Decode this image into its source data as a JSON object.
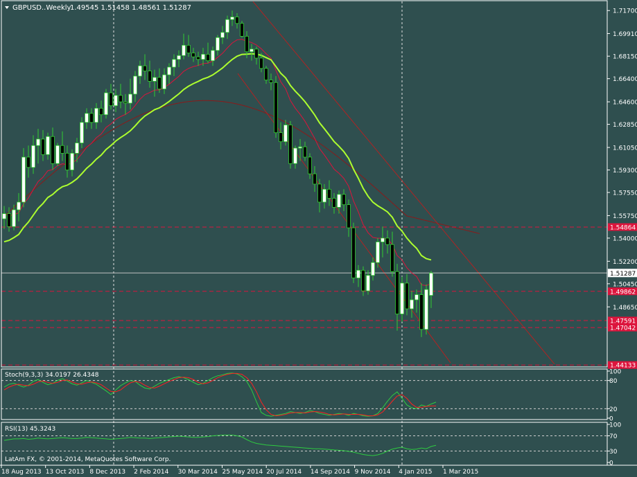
{
  "window": {
    "symbol_label": "GBPUSD..Weekly",
    "ohlc": "1.49545 1.51458 1.48561 1.51287",
    "copyright": "LatAm FX, © 2001-2014, MetaQuotes Software Corp."
  },
  "colors": {
    "background": "#2F4F4F",
    "grid": "#E6E6E6",
    "text": "#FFFFFF",
    "bull_fill": "#FFFFFF",
    "bear_fill": "#000000",
    "candle_outline": "#32CD32",
    "ma_fast": "#ADFF2F",
    "ma_mid": "#DC143C",
    "ma_slow": "#8B1A1A",
    "level_line": "#DC143C",
    "level_tag": "#DC143C",
    "price_tag_bg": "#FFFFFF",
    "stoch_main": "#2ECC40",
    "stoch_signal": "#FF2020",
    "rsi_line": "#2ECC40",
    "trendline": "#B22222"
  },
  "chart_data": [
    {
      "type": "candlestick",
      "title": "GBPUSD..Weekly",
      "ylim": [
        1.4398,
        1.7252
      ],
      "yticks": [
        "1.71700",
        "1.69910",
        "1.68150",
        "1.66400",
        "1.64600",
        "1.62850",
        "1.61050",
        "1.59300",
        "1.57550",
        "1.55750",
        "1.54000",
        "1.52200",
        "1.50450",
        "1.48650"
      ],
      "xticks": [
        "18 Aug 2013",
        "13 Oct 2013",
        "8 Dec 2013",
        "2 Feb 2014",
        "30 Mar 2014",
        "25 May 2014",
        "20 Jul 2014",
        "14 Sep 2014",
        "9 Nov 2014",
        "4 Jan 2015",
        "1 Mar 2015"
      ],
      "current_price": "1.51287",
      "horizontal_levels": [
        {
          "value": 1.5486,
          "label": "1.54864"
        },
        {
          "value": 1.4986,
          "label": "1.49862"
        },
        {
          "value": 1.4759,
          "label": "1.47591"
        },
        {
          "value": 1.4704,
          "label": "1.47042"
        },
        {
          "value": 1.4413,
          "label": "1.44133"
        }
      ],
      "vertical_markers": [
        "8 Dec 2013",
        "4 Jan 2015"
      ],
      "candles": [
        [
          1.555,
          1.565,
          1.547,
          1.559
        ],
        [
          1.559,
          1.564,
          1.545,
          1.549
        ],
        [
          1.549,
          1.566,
          1.546,
          1.562
        ],
        [
          1.562,
          1.575,
          1.553,
          1.568
        ],
        [
          1.568,
          1.61,
          1.564,
          1.603
        ],
        [
          1.603,
          1.612,
          1.587,
          1.595
        ],
        [
          1.595,
          1.62,
          1.59,
          1.612
        ],
        [
          1.612,
          1.625,
          1.598,
          1.617
        ],
        [
          1.617,
          1.624,
          1.6,
          1.605
        ],
        [
          1.605,
          1.622,
          1.601,
          1.619
        ],
        [
          1.619,
          1.626,
          1.593,
          1.598
        ],
        [
          1.598,
          1.614,
          1.596,
          1.612
        ],
        [
          1.612,
          1.623,
          1.6,
          1.606
        ],
        [
          1.606,
          1.612,
          1.587,
          1.593
        ],
        [
          1.593,
          1.609,
          1.588,
          1.606
        ],
        [
          1.606,
          1.618,
          1.599,
          1.614
        ],
        [
          1.614,
          1.634,
          1.61,
          1.63
        ],
        [
          1.63,
          1.641,
          1.625,
          1.637
        ],
        [
          1.637,
          1.641,
          1.625,
          1.63
        ],
        [
          1.63,
          1.645,
          1.625,
          1.641
        ],
        [
          1.641,
          1.647,
          1.63,
          1.636
        ],
        [
          1.636,
          1.656,
          1.633,
          1.653
        ],
        [
          1.653,
          1.66,
          1.64,
          1.643
        ],
        [
          1.643,
          1.656,
          1.638,
          1.651
        ],
        [
          1.651,
          1.66,
          1.641,
          1.646
        ],
        [
          1.646,
          1.652,
          1.636,
          1.645
        ],
        [
          1.645,
          1.664,
          1.64,
          1.652
        ],
        [
          1.652,
          1.67,
          1.646,
          1.666
        ],
        [
          1.666,
          1.678,
          1.66,
          1.674
        ],
        [
          1.674,
          1.683,
          1.663,
          1.67
        ],
        [
          1.67,
          1.678,
          1.657,
          1.662
        ],
        [
          1.662,
          1.671,
          1.65,
          1.665
        ],
        [
          1.665,
          1.672,
          1.653,
          1.656
        ],
        [
          1.656,
          1.672,
          1.652,
          1.667
        ],
        [
          1.667,
          1.676,
          1.66,
          1.673
        ],
        [
          1.673,
          1.683,
          1.666,
          1.679
        ],
        [
          1.679,
          1.686,
          1.673,
          1.682
        ],
        [
          1.682,
          1.699,
          1.679,
          1.69
        ],
        [
          1.69,
          1.698,
          1.681,
          1.684
        ],
        [
          1.684,
          1.688,
          1.677,
          1.681
        ],
        [
          1.681,
          1.685,
          1.674,
          1.679
        ],
        [
          1.679,
          1.688,
          1.674,
          1.683
        ],
        [
          1.683,
          1.692,
          1.676,
          1.678
        ],
        [
          1.678,
          1.689,
          1.674,
          1.686
        ],
        [
          1.686,
          1.698,
          1.682,
          1.696
        ],
        [
          1.696,
          1.705,
          1.691,
          1.7
        ],
        [
          1.7,
          1.713,
          1.695,
          1.71
        ],
        [
          1.71,
          1.717,
          1.705,
          1.712
        ],
        [
          1.712,
          1.715,
          1.703,
          1.707
        ],
        [
          1.707,
          1.709,
          1.696,
          1.697
        ],
        [
          1.697,
          1.701,
          1.68,
          1.685
        ],
        [
          1.685,
          1.691,
          1.678,
          1.687
        ],
        [
          1.687,
          1.689,
          1.675,
          1.68
        ],
        [
          1.68,
          1.684,
          1.669,
          1.672
        ],
        [
          1.672,
          1.674,
          1.66,
          1.663
        ],
        [
          1.663,
          1.668,
          1.655,
          1.661
        ],
        [
          1.661,
          1.666,
          1.618,
          1.622
        ],
        [
          1.622,
          1.63,
          1.609,
          1.615
        ],
        [
          1.615,
          1.632,
          1.612,
          1.628
        ],
        [
          1.628,
          1.631,
          1.594,
          1.598
        ],
        [
          1.598,
          1.612,
          1.594,
          1.61
        ],
        [
          1.61,
          1.617,
          1.6,
          1.611
        ],
        [
          1.611,
          1.615,
          1.6,
          1.603
        ],
        [
          1.603,
          1.606,
          1.586,
          1.59
        ],
        [
          1.59,
          1.596,
          1.576,
          1.582
        ],
        [
          1.582,
          1.586,
          1.56,
          1.568
        ],
        [
          1.568,
          1.582,
          1.563,
          1.578
        ],
        [
          1.578,
          1.585,
          1.565,
          1.571
        ],
        [
          1.571,
          1.575,
          1.559,
          1.564
        ],
        [
          1.564,
          1.577,
          1.559,
          1.574
        ],
        [
          1.574,
          1.578,
          1.561,
          1.566
        ],
        [
          1.566,
          1.57,
          1.541,
          1.548
        ],
        [
          1.548,
          1.552,
          1.505,
          1.509
        ],
        [
          1.509,
          1.519,
          1.502,
          1.515
        ],
        [
          1.515,
          1.518,
          1.495,
          1.499
        ],
        [
          1.499,
          1.515,
          1.496,
          1.511
        ],
        [
          1.511,
          1.525,
          1.507,
          1.521
        ],
        [
          1.521,
          1.54,
          1.517,
          1.537
        ],
        [
          1.537,
          1.549,
          1.525,
          1.54
        ],
        [
          1.54,
          1.546,
          1.528,
          1.535
        ],
        [
          1.535,
          1.545,
          1.51,
          1.514
        ],
        [
          1.514,
          1.52,
          1.468,
          1.481
        ],
        [
          1.481,
          1.51,
          1.475,
          1.505
        ],
        [
          1.505,
          1.512,
          1.48,
          1.485
        ],
        [
          1.485,
          1.499,
          1.478,
          1.492
        ],
        [
          1.492,
          1.5,
          1.482,
          1.496
        ],
        [
          1.496,
          1.505,
          1.463,
          1.469
        ],
        [
          1.469,
          1.504,
          1.465,
          1.5
        ],
        [
          1.49545,
          1.51458,
          1.48561,
          1.51287
        ]
      ],
      "series": [
        {
          "name": "",
          "kind": "ma_fast",
          "values": [
            1.535,
            1.542,
            1.553,
            1.563,
            1.575,
            1.586,
            1.594,
            1.601,
            1.607,
            1.612,
            1.617,
            1.623,
            1.63,
            1.638,
            1.645,
            1.651,
            1.657,
            1.663,
            1.667,
            1.672,
            1.676,
            1.679,
            1.682,
            1.684,
            1.685,
            1.686,
            1.683,
            1.676,
            1.665,
            1.65,
            1.635,
            1.62,
            1.606,
            1.594,
            1.583,
            1.574,
            1.565,
            1.557,
            1.548,
            1.538,
            1.527,
            1.517,
            1.514
          ],
          "x_at": [
            0,
            4,
            8,
            12,
            16,
            20,
            24,
            28,
            32,
            36,
            40,
            44,
            48,
            52,
            56,
            60,
            64,
            68,
            72,
            76,
            80,
            84,
            88,
            92,
            94,
            96,
            98,
            100,
            102,
            104,
            106,
            108,
            110,
            112,
            114,
            116,
            118,
            120,
            122,
            124,
            126,
            128,
            129
          ]
        }
      ]
    },
    {
      "type": "line",
      "title": "Stoch(9,3,3) 34.0197 26.4348",
      "ylim": [
        0,
        100
      ],
      "yticks": [
        "100",
        "80",
        "20",
        "0"
      ],
      "levels": [
        80,
        20
      ],
      "series": [
        {
          "name": "",
          "values": [
            66,
            72,
            74,
            70,
            66,
            70,
            78,
            82,
            76,
            71,
            74,
            80,
            84,
            79,
            73,
            70,
            75,
            80,
            76,
            72,
            65,
            58,
            50,
            60,
            69,
            75,
            80,
            78,
            70,
            64,
            62,
            68,
            74,
            78,
            82,
            86,
            88,
            86,
            82,
            76,
            71,
            74,
            80,
            86,
            90,
            92,
            95,
            96,
            94,
            88,
            78,
            60,
            35,
            12,
            6,
            4,
            6,
            8,
            10,
            14,
            12,
            10,
            12,
            16,
            14,
            10,
            8,
            6,
            8,
            10,
            9,
            6,
            10,
            8,
            5,
            4,
            5,
            10,
            22,
            36,
            48,
            56,
            42,
            28,
            22,
            20,
            28,
            25,
            30,
            34
          ]
        },
        {
          "name": "",
          "values": [
            60,
            66,
            70,
            72,
            70,
            69,
            72,
            77,
            79,
            76,
            74,
            76,
            80,
            81,
            77,
            73,
            72,
            75,
            77,
            75,
            71,
            64,
            57,
            56,
            60,
            68,
            75,
            78,
            76,
            70,
            65,
            64,
            68,
            73,
            78,
            82,
            86,
            87,
            86,
            82,
            76,
            73,
            75,
            80,
            86,
            90,
            93,
            95,
            95,
            93,
            86,
            74,
            56,
            34,
            18,
            8,
            5,
            6,
            8,
            11,
            12,
            12,
            11,
            13,
            14,
            13,
            11,
            8,
            7,
            8,
            9,
            8,
            8,
            8,
            7,
            5,
            5,
            7,
            13,
            24,
            36,
            47,
            50,
            42,
            30,
            23,
            23,
            25,
            26,
            26
          ]
        }
      ]
    },
    {
      "type": "line",
      "title": "RSI(13) 45.3243",
      "ylim": [
        0,
        100
      ],
      "yticks": [
        "100",
        "70",
        "30",
        "0"
      ],
      "levels": [
        70,
        30
      ],
      "series": [
        {
          "name": "",
          "values": [
            58,
            60,
            62,
            62,
            63,
            61,
            62,
            64,
            63,
            62,
            63,
            64,
            65,
            64,
            63,
            63,
            64,
            66,
            65,
            64,
            63,
            62,
            61,
            62,
            63,
            64,
            66,
            65,
            64,
            64,
            63,
            64,
            65,
            66,
            67,
            68,
            69,
            68,
            67,
            66,
            66,
            67,
            68,
            70,
            71,
            72,
            72,
            72,
            70,
            67,
            60,
            54,
            50,
            48,
            46,
            45,
            44,
            43,
            42,
            41,
            40,
            39,
            38,
            37,
            36,
            36,
            35,
            34,
            33,
            32,
            31,
            29,
            27,
            24,
            21,
            19,
            18,
            20,
            24,
            30,
            35,
            38,
            40,
            36,
            34,
            35,
            38,
            36,
            42,
            45
          ]
        }
      ]
    }
  ]
}
